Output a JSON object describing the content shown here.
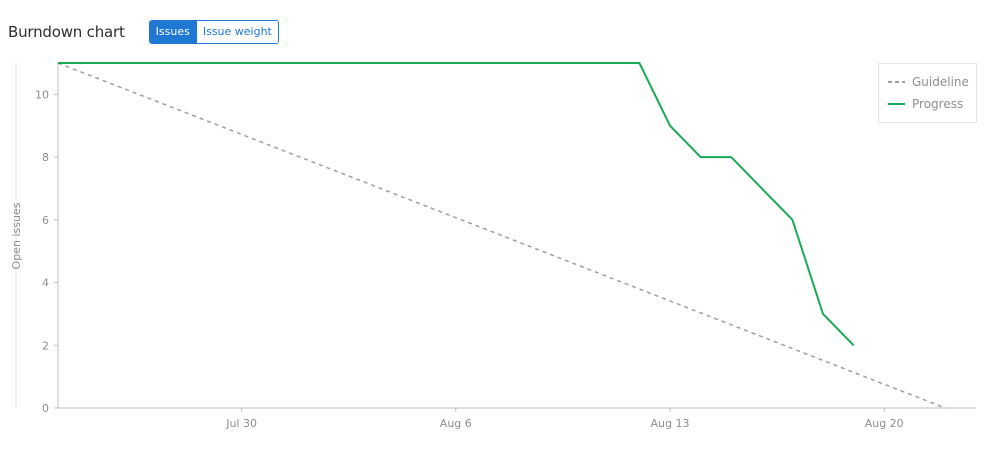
{
  "header": {
    "title": "Burndown chart",
    "toggle": {
      "issues_label": "Issues",
      "weight_label": "Issue weight",
      "active": "issues"
    }
  },
  "chart_data": {
    "type": "line",
    "ylabel": "Open issues",
    "xlabel": "",
    "x_ticks": [
      "Jul 30",
      "Aug 6",
      "Aug 13",
      "Aug 20"
    ],
    "y_ticks": [
      0,
      2,
      4,
      6,
      8,
      10
    ],
    "ylim": [
      0,
      11
    ],
    "xlim": [
      "2019-07-24",
      "2019-08-23"
    ],
    "legend": {
      "position": "top-right",
      "entries": [
        {
          "name": "Guideline",
          "style": "dashed",
          "color": "#9e9e9e"
        },
        {
          "name": "Progress",
          "style": "solid",
          "color": "#1aaa55"
        }
      ]
    },
    "series": [
      {
        "name": "Guideline",
        "color": "#9e9e9e",
        "dashed": true,
        "points": [
          {
            "x": "2019-07-24",
            "y": 11
          },
          {
            "x": "2019-08-22",
            "y": 0
          }
        ]
      },
      {
        "name": "Progress",
        "color": "#1aaa55",
        "dashed": false,
        "points": [
          {
            "x": "2019-07-24",
            "y": 11
          },
          {
            "x": "2019-08-12",
            "y": 11
          },
          {
            "x": "2019-08-13",
            "y": 9
          },
          {
            "x": "2019-08-14",
            "y": 8
          },
          {
            "x": "2019-08-15",
            "y": 8
          },
          {
            "x": "2019-08-17",
            "y": 6
          },
          {
            "x": "2019-08-18",
            "y": 3
          },
          {
            "x": "2019-08-19",
            "y": 2
          }
        ]
      }
    ]
  }
}
